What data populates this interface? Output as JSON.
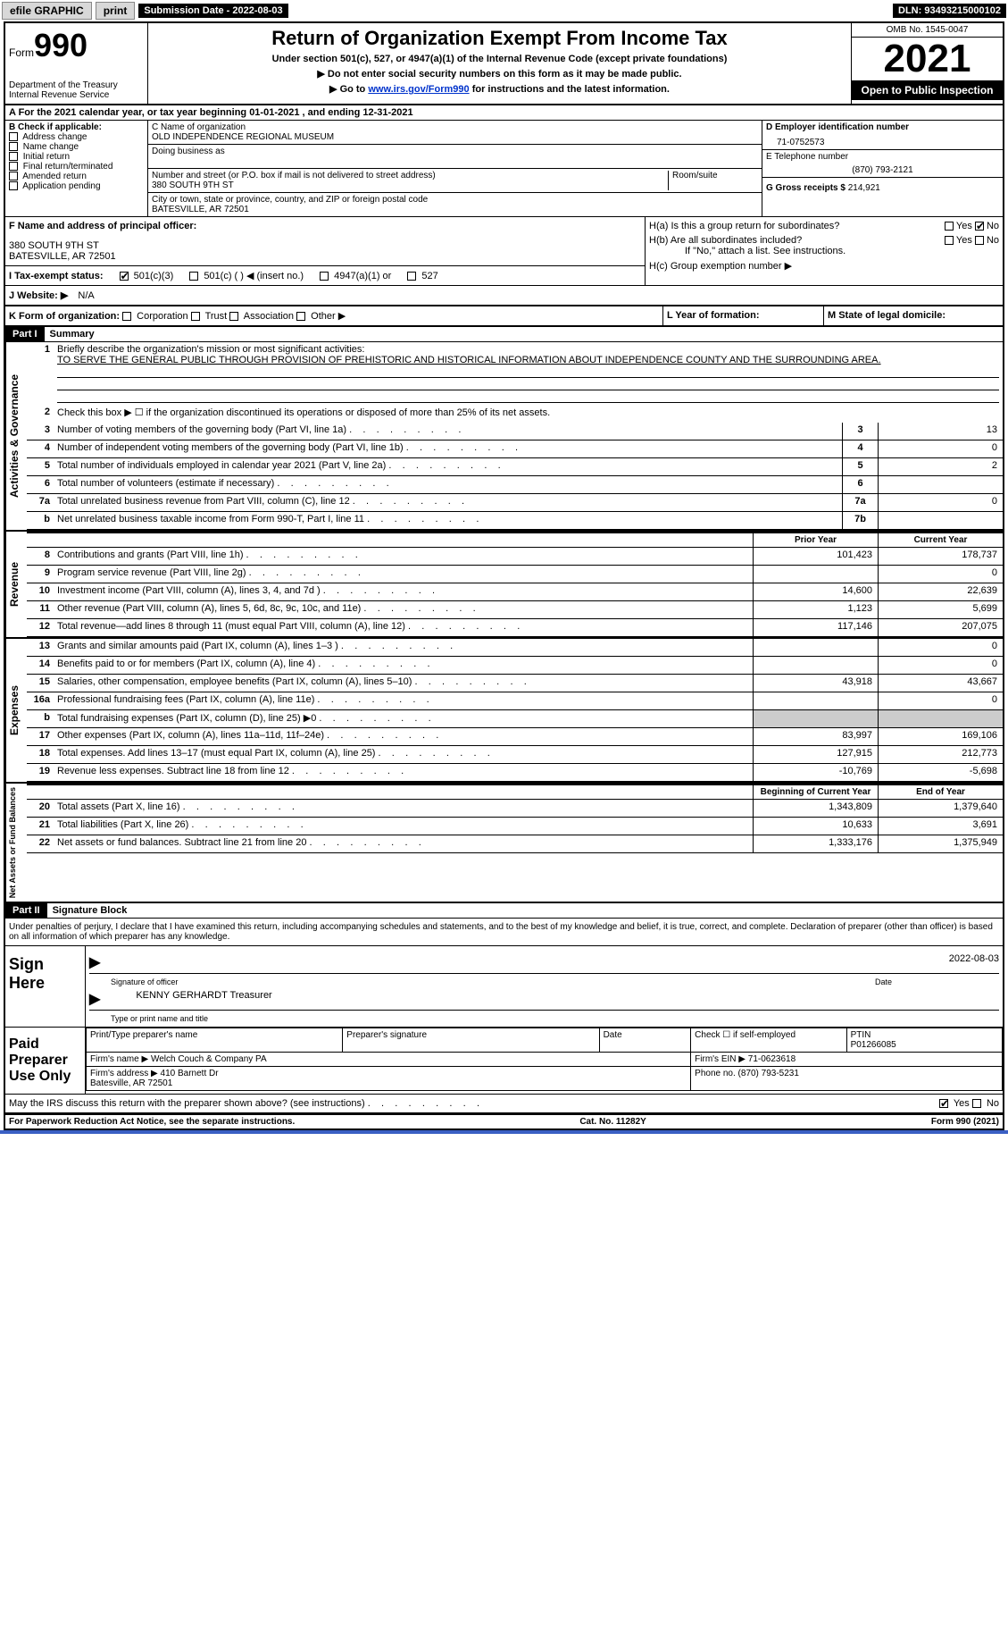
{
  "topbar": {
    "efile": "efile GRAPHIC",
    "print": "print",
    "sub_label": "Submission Date - 2022-08-03",
    "dln": "DLN: 93493215000102"
  },
  "header": {
    "form_word": "Form",
    "form_num": "990",
    "title": "Return of Organization Exempt From Income Tax",
    "subtitle": "Under section 501(c), 527, or 4947(a)(1) of the Internal Revenue Code (except private foundations)",
    "note1": "▶ Do not enter social security numbers on this form as it may be made public.",
    "note2_pre": "▶ Go to ",
    "note2_link": "www.irs.gov/Form990",
    "note2_post": " for instructions and the latest information.",
    "dept": "Department of the Treasury\nInternal Revenue Service",
    "omb": "OMB No. 1545-0047",
    "year": "2021",
    "open": "Open to Public Inspection"
  },
  "periodA": "A For the 2021 calendar year, or tax year beginning 01-01-2021   , and ending 12-31-2021",
  "colB": {
    "label": "B Check if applicable:",
    "opts": [
      "Address change",
      "Name change",
      "Initial return",
      "Final return/terminated",
      "Amended return",
      "Application pending"
    ]
  },
  "colC": {
    "name_label": "C Name of organization",
    "name": "OLD INDEPENDENCE REGIONAL MUSEUM",
    "dba_label": "Doing business as",
    "addr_label": "Number and street (or P.O. box if mail is not delivered to street address)",
    "addr": "380 SOUTH 9TH ST",
    "room_label": "Room/suite",
    "city_label": "City or town, state or province, country, and ZIP or foreign postal code",
    "city": "BATESVILLE, AR  72501"
  },
  "colD": {
    "ein_label": "D Employer identification number",
    "ein": "71-0752573",
    "phone_label": "E Telephone number",
    "phone": "(870) 793-2121",
    "gross_label": "G Gross receipts $",
    "gross": "214,921"
  },
  "rowF": {
    "label": "F  Name and address of principal officer:",
    "addr1": "380 SOUTH 9TH ST",
    "addr2": "BATESVILLE, AR  72501"
  },
  "rowH": {
    "ha": "H(a)  Is this a group return for subordinates?",
    "hb": "H(b)  Are all subordinates included?",
    "hnote": "If \"No,\" attach a list. See instructions.",
    "hc": "H(c)  Group exemption number ▶",
    "yes": "Yes",
    "no": "No"
  },
  "rowI": {
    "label": "I   Tax-exempt status:",
    "o1": "501(c)(3)",
    "o2": "501(c) (   ) ◀ (insert no.)",
    "o3": "4947(a)(1) or",
    "o4": "527"
  },
  "rowJ": {
    "label": "J   Website: ▶",
    "val": "N/A"
  },
  "rowK": {
    "label": "K Form of organization:",
    "o1": "Corporation",
    "o2": "Trust",
    "o3": "Association",
    "o4": "Other ▶",
    "l_label": "L Year of formation:",
    "m_label": "M State of legal domicile:"
  },
  "part1": {
    "part": "Part I",
    "title": "Summary",
    "vlabel_gov": "Activities & Governance",
    "vlabel_rev": "Revenue",
    "vlabel_exp": "Expenses",
    "vlabel_net": "Net Assets or Fund Balances",
    "l1": "Briefly describe the organization's mission or most significant activities:",
    "mission": "TO SERVE THE GENERAL PUBLIC THROUGH PROVISION OF PREHISTORIC AND HISTORICAL INFORMATION ABOUT INDEPENDENCE COUNTY AND THE SURROUNDING AREA.",
    "l2": "Check this box ▶ ☐ if the organization discontinued its operations or disposed of more than 25% of its net assets.",
    "lines_gov": [
      {
        "n": "3",
        "d": "Number of voting members of the governing body (Part VI, line 1a)",
        "bn": "3",
        "v": "13"
      },
      {
        "n": "4",
        "d": "Number of independent voting members of the governing body (Part VI, line 1b)",
        "bn": "4",
        "v": "0"
      },
      {
        "n": "5",
        "d": "Total number of individuals employed in calendar year 2021 (Part V, line 2a)",
        "bn": "5",
        "v": "2"
      },
      {
        "n": "6",
        "d": "Total number of volunteers (estimate if necessary)",
        "bn": "6",
        "v": ""
      },
      {
        "n": "7a",
        "d": "Total unrelated business revenue from Part VIII, column (C), line 12",
        "bn": "7a",
        "v": "0"
      },
      {
        "n": "b",
        "d": "Net unrelated business taxable income from Form 990-T, Part I, line 11",
        "bn": "7b",
        "v": ""
      }
    ],
    "py_label": "Prior Year",
    "cy_label": "Current Year",
    "lines_rev": [
      {
        "n": "8",
        "d": "Contributions and grants (Part VIII, line 1h)",
        "py": "101,423",
        "cy": "178,737"
      },
      {
        "n": "9",
        "d": "Program service revenue (Part VIII, line 2g)",
        "py": "",
        "cy": "0"
      },
      {
        "n": "10",
        "d": "Investment income (Part VIII, column (A), lines 3, 4, and 7d )",
        "py": "14,600",
        "cy": "22,639"
      },
      {
        "n": "11",
        "d": "Other revenue (Part VIII, column (A), lines 5, 6d, 8c, 9c, 10c, and 11e)",
        "py": "1,123",
        "cy": "5,699"
      },
      {
        "n": "12",
        "d": "Total revenue—add lines 8 through 11 (must equal Part VIII, column (A), line 12)",
        "py": "117,146",
        "cy": "207,075"
      }
    ],
    "lines_exp": [
      {
        "n": "13",
        "d": "Grants and similar amounts paid (Part IX, column (A), lines 1–3 )",
        "py": "",
        "cy": "0"
      },
      {
        "n": "14",
        "d": "Benefits paid to or for members (Part IX, column (A), line 4)",
        "py": "",
        "cy": "0"
      },
      {
        "n": "15",
        "d": "Salaries, other compensation, employee benefits (Part IX, column (A), lines 5–10)",
        "py": "43,918",
        "cy": "43,667"
      },
      {
        "n": "16a",
        "d": "Professional fundraising fees (Part IX, column (A), line 11e)",
        "py": "",
        "cy": "0"
      },
      {
        "n": "b",
        "d": "Total fundraising expenses (Part IX, column (D), line 25) ▶0",
        "py": "shade",
        "cy": "shade"
      },
      {
        "n": "17",
        "d": "Other expenses (Part IX, column (A), lines 11a–11d, 11f–24e)",
        "py": "83,997",
        "cy": "169,106"
      },
      {
        "n": "18",
        "d": "Total expenses. Add lines 13–17 (must equal Part IX, column (A), line 25)",
        "py": "127,915",
        "cy": "212,773"
      },
      {
        "n": "19",
        "d": "Revenue less expenses. Subtract line 18 from line 12",
        "py": "-10,769",
        "cy": "-5,698"
      }
    ],
    "boy_label": "Beginning of Current Year",
    "eoy_label": "End of Year",
    "lines_net": [
      {
        "n": "20",
        "d": "Total assets (Part X, line 16)",
        "py": "1,343,809",
        "cy": "1,379,640"
      },
      {
        "n": "21",
        "d": "Total liabilities (Part X, line 26)",
        "py": "10,633",
        "cy": "3,691"
      },
      {
        "n": "22",
        "d": "Net assets or fund balances. Subtract line 21 from line 20",
        "py": "1,333,176",
        "cy": "1,375,949"
      }
    ]
  },
  "part2": {
    "part": "Part II",
    "title": "Signature Block",
    "decl": "Under penalties of perjury, I declare that I have examined this return, including accompanying schedules and statements, and to the best of my knowledge and belief, it is true, correct, and complete. Declaration of preparer (other than officer) is based on all information of which preparer has any knowledge.",
    "sign_here": "Sign Here",
    "sig_officer": "Signature of officer",
    "sig_date": "2022-08-03",
    "date_lbl": "Date",
    "name_title": "KENNY GERHARDT  Treasurer",
    "name_lbl": "Type or print name and title",
    "paid": "Paid Preparer Use Only",
    "pt_name_lbl": "Print/Type preparer's name",
    "pt_sig_lbl": "Preparer's signature",
    "pt_date_lbl": "Date",
    "pt_check": "Check ☐ if self-employed",
    "ptin_lbl": "PTIN",
    "ptin": "P01266085",
    "firm_name_lbl": "Firm's name    ▶",
    "firm_name": "Welch Couch & Company PA",
    "firm_ein_lbl": "Firm's EIN ▶",
    "firm_ein": "71-0623618",
    "firm_addr_lbl": "Firm's address ▶",
    "firm_addr": "410 Barnett Dr\nBatesville, AR  72501",
    "firm_phone_lbl": "Phone no.",
    "firm_phone": "(870) 793-5231",
    "may_irs": "May the IRS discuss this return with the preparer shown above? (see instructions)",
    "yes": "Yes",
    "no": "No"
  },
  "footer": {
    "paperwork": "For Paperwork Reduction Act Notice, see the separate instructions.",
    "cat": "Cat. No. 11282Y",
    "form": "Form 990 (2021)"
  }
}
